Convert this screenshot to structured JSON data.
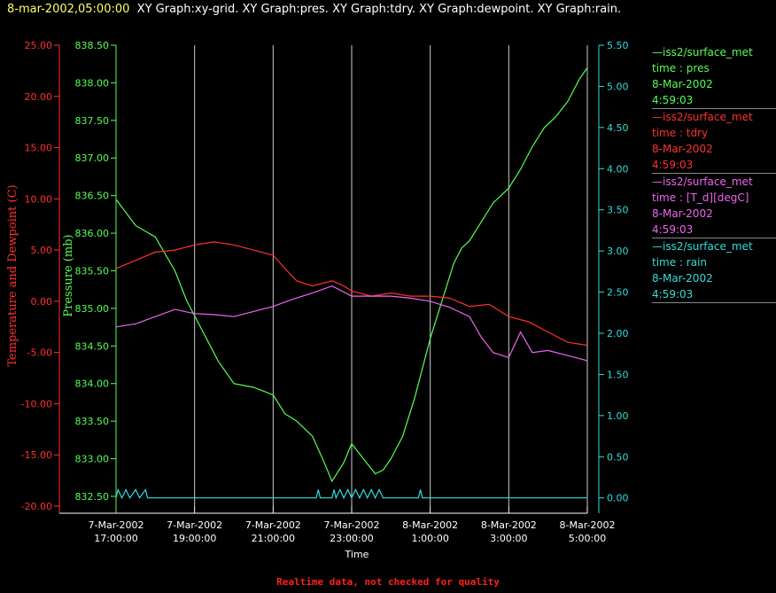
{
  "header": {
    "timestamp": "8-mar-2002,05:00:00",
    "graphs": "XY Graph:xy-grid.  XY Graph:pres.  XY Graph:tdry.  XY Graph:dewpoint.  XY Graph:rain."
  },
  "footer": {
    "note": "Realtime data, not checked for quality"
  },
  "colors": {
    "pres": "#55ff55",
    "tdry": "#ff3030",
    "dewpoint": "#ee66ee",
    "rain": "#33dddd",
    "grid": "#cccccc",
    "background": "#000000"
  },
  "legend": [
    {
      "source": "—iss2/surface_met",
      "field": "time : pres",
      "date": "8-Mar-2002",
      "time": "4:59:03",
      "color": "#55ff55"
    },
    {
      "source": "—iss2/surface_met",
      "field": "time : tdry",
      "date": "8-Mar-2002",
      "time": "4:59:03",
      "color": "#ff3030"
    },
    {
      "source": "—iss2/surface_met",
      "field": "time : [T_d][degC]",
      "date": "8-Mar-2002",
      "time": "4:59:03",
      "color": "#ee66ee"
    },
    {
      "source": "—iss2/surface_met",
      "field": "time : rain",
      "date": "8-Mar-2002",
      "time": "4:59:03",
      "color": "#33dddd"
    }
  ],
  "chart_data": {
    "type": "line",
    "xlabel": "Time",
    "x_ticks": [
      {
        "hour": 17,
        "line1": "7-Mar-2002",
        "line2": "17:00:00"
      },
      {
        "hour": 19,
        "line1": "7-Mar-2002",
        "line2": "19:00:00"
      },
      {
        "hour": 21,
        "line1": "7-Mar-2002",
        "line2": "21:00:00"
      },
      {
        "hour": 23,
        "line1": "7-Mar-2002",
        "line2": "23:00:00"
      },
      {
        "hour": 25,
        "line1": "8-Mar-2002",
        "line2": "1:00:00"
      },
      {
        "hour": 27,
        "line1": "8-Mar-2002",
        "line2": "3:00:00"
      },
      {
        "hour": 29,
        "line1": "8-Mar-2002",
        "line2": "5:00:00"
      }
    ],
    "xlim": [
      17,
      29
    ],
    "grid": "vertical",
    "axes": {
      "temp": {
        "label": "Temperature and Dewpoint (C)",
        "ylim": [
          -20,
          25
        ],
        "ticks": [
          "25.00",
          "20.00",
          "15.00",
          "10.00",
          "5.00",
          "0.00",
          "-5.00",
          "-10.00",
          "-15.00",
          "-20.00"
        ]
      },
      "pres": {
        "label": "Pressure (mb)",
        "ylim": [
          832.37,
          838.5
        ],
        "ticks": [
          "838.50",
          "838.00",
          "837.50",
          "837.00",
          "836.50",
          "836.00",
          "835.50",
          "835.00",
          "834.50",
          "834.00",
          "833.50",
          "833.00",
          "832.50"
        ]
      },
      "rain": {
        "label": "",
        "ylim": [
          -0.1,
          5.5
        ],
        "ticks": [
          "5.50",
          "5.00",
          "4.50",
          "4.00",
          "3.50",
          "3.00",
          "2.50",
          "2.00",
          "1.50",
          "1.00",
          "0.50",
          "0.00"
        ]
      }
    },
    "series": [
      {
        "name": "pres",
        "axis": "pres",
        "points": [
          [
            17,
            836.45
          ],
          [
            17.5,
            836.1
          ],
          [
            18,
            835.95
          ],
          [
            18.5,
            835.5
          ],
          [
            18.8,
            835.1
          ],
          [
            19,
            834.9
          ],
          [
            19.3,
            834.6
          ],
          [
            19.6,
            834.3
          ],
          [
            20,
            834.0
          ],
          [
            20.5,
            833.95
          ],
          [
            21,
            833.85
          ],
          [
            21.3,
            833.6
          ],
          [
            21.6,
            833.5
          ],
          [
            22,
            833.3
          ],
          [
            22.3,
            832.95
          ],
          [
            22.5,
            832.7
          ],
          [
            22.8,
            832.95
          ],
          [
            23,
            833.2
          ],
          [
            23.3,
            833.0
          ],
          [
            23.6,
            832.8
          ],
          [
            23.8,
            832.85
          ],
          [
            24,
            833.0
          ],
          [
            24.3,
            833.3
          ],
          [
            24.6,
            833.8
          ],
          [
            24.8,
            834.2
          ],
          [
            25,
            834.6
          ],
          [
            25.3,
            835.1
          ],
          [
            25.6,
            835.6
          ],
          [
            25.8,
            835.8
          ],
          [
            26,
            835.9
          ],
          [
            26.3,
            836.15
          ],
          [
            26.6,
            836.4
          ],
          [
            26.8,
            836.5
          ],
          [
            27,
            836.6
          ],
          [
            27.3,
            836.85
          ],
          [
            27.6,
            837.15
          ],
          [
            27.9,
            837.4
          ],
          [
            28.2,
            837.55
          ],
          [
            28.5,
            837.75
          ],
          [
            28.8,
            838.05
          ],
          [
            29,
            838.2
          ]
        ]
      },
      {
        "name": "tdry",
        "axis": "temp",
        "points": [
          [
            17,
            3.2
          ],
          [
            17.5,
            4.0
          ],
          [
            18,
            4.8
          ],
          [
            18.5,
            5.0
          ],
          [
            19,
            5.5
          ],
          [
            19.5,
            5.8
          ],
          [
            20,
            5.5
          ],
          [
            20.5,
            5.0
          ],
          [
            21,
            4.5
          ],
          [
            21.3,
            3.2
          ],
          [
            21.6,
            2.0
          ],
          [
            22,
            1.5
          ],
          [
            22.5,
            2.0
          ],
          [
            22.8,
            1.5
          ],
          [
            23,
            1.0
          ],
          [
            23.5,
            0.5
          ],
          [
            24,
            0.8
          ],
          [
            24.5,
            0.5
          ],
          [
            25,
            0.5
          ],
          [
            25.5,
            0.3
          ],
          [
            26,
            -0.5
          ],
          [
            26.5,
            -0.3
          ],
          [
            27,
            -1.5
          ],
          [
            27.5,
            -2.0
          ],
          [
            28,
            -3.0
          ],
          [
            28.5,
            -4.0
          ],
          [
            29,
            -4.3
          ]
        ]
      },
      {
        "name": "dewpoint",
        "axis": "temp",
        "points": [
          [
            17,
            -2.5
          ],
          [
            17.5,
            -2.2
          ],
          [
            18,
            -1.5
          ],
          [
            18.5,
            -0.8
          ],
          [
            19,
            -1.2
          ],
          [
            19.5,
            -1.3
          ],
          [
            20,
            -1.5
          ],
          [
            20.5,
            -1.0
          ],
          [
            21,
            -0.5
          ],
          [
            21.5,
            0.2
          ],
          [
            22,
            0.8
          ],
          [
            22.5,
            1.5
          ],
          [
            23,
            0.5
          ],
          [
            23.5,
            0.5
          ],
          [
            24,
            0.5
          ],
          [
            24.5,
            0.3
          ],
          [
            25,
            0.0
          ],
          [
            25.5,
            -0.6
          ],
          [
            26,
            -1.5
          ],
          [
            26.3,
            -3.5
          ],
          [
            26.6,
            -5.0
          ],
          [
            27,
            -5.5
          ],
          [
            27.3,
            -3.0
          ],
          [
            27.6,
            -5.0
          ],
          [
            28,
            -4.8
          ],
          [
            28.5,
            -5.3
          ],
          [
            29,
            -5.8
          ]
        ]
      },
      {
        "name": "rain",
        "axis": "rain",
        "points": [
          [
            17,
            0
          ],
          [
            17.05,
            0.1
          ],
          [
            17.15,
            0
          ],
          [
            17.25,
            0.1
          ],
          [
            17.35,
            0
          ],
          [
            17.5,
            0.1
          ],
          [
            17.6,
            0
          ],
          [
            17.75,
            0.1
          ],
          [
            17.8,
            0
          ],
          [
            22.1,
            0
          ],
          [
            22.15,
            0.1
          ],
          [
            22.2,
            0
          ],
          [
            22.5,
            0
          ],
          [
            22.55,
            0.1
          ],
          [
            22.6,
            0
          ],
          [
            22.7,
            0.1
          ],
          [
            22.8,
            0
          ],
          [
            22.9,
            0.1
          ],
          [
            23,
            0
          ],
          [
            23.1,
            0.1
          ],
          [
            23.2,
            0
          ],
          [
            23.3,
            0.1
          ],
          [
            23.4,
            0
          ],
          [
            23.5,
            0.1
          ],
          [
            23.6,
            0
          ],
          [
            23.7,
            0.1
          ],
          [
            23.8,
            0
          ],
          [
            24.7,
            0
          ],
          [
            24.75,
            0.1
          ],
          [
            24.8,
            0
          ],
          [
            29,
            0
          ]
        ]
      }
    ]
  }
}
